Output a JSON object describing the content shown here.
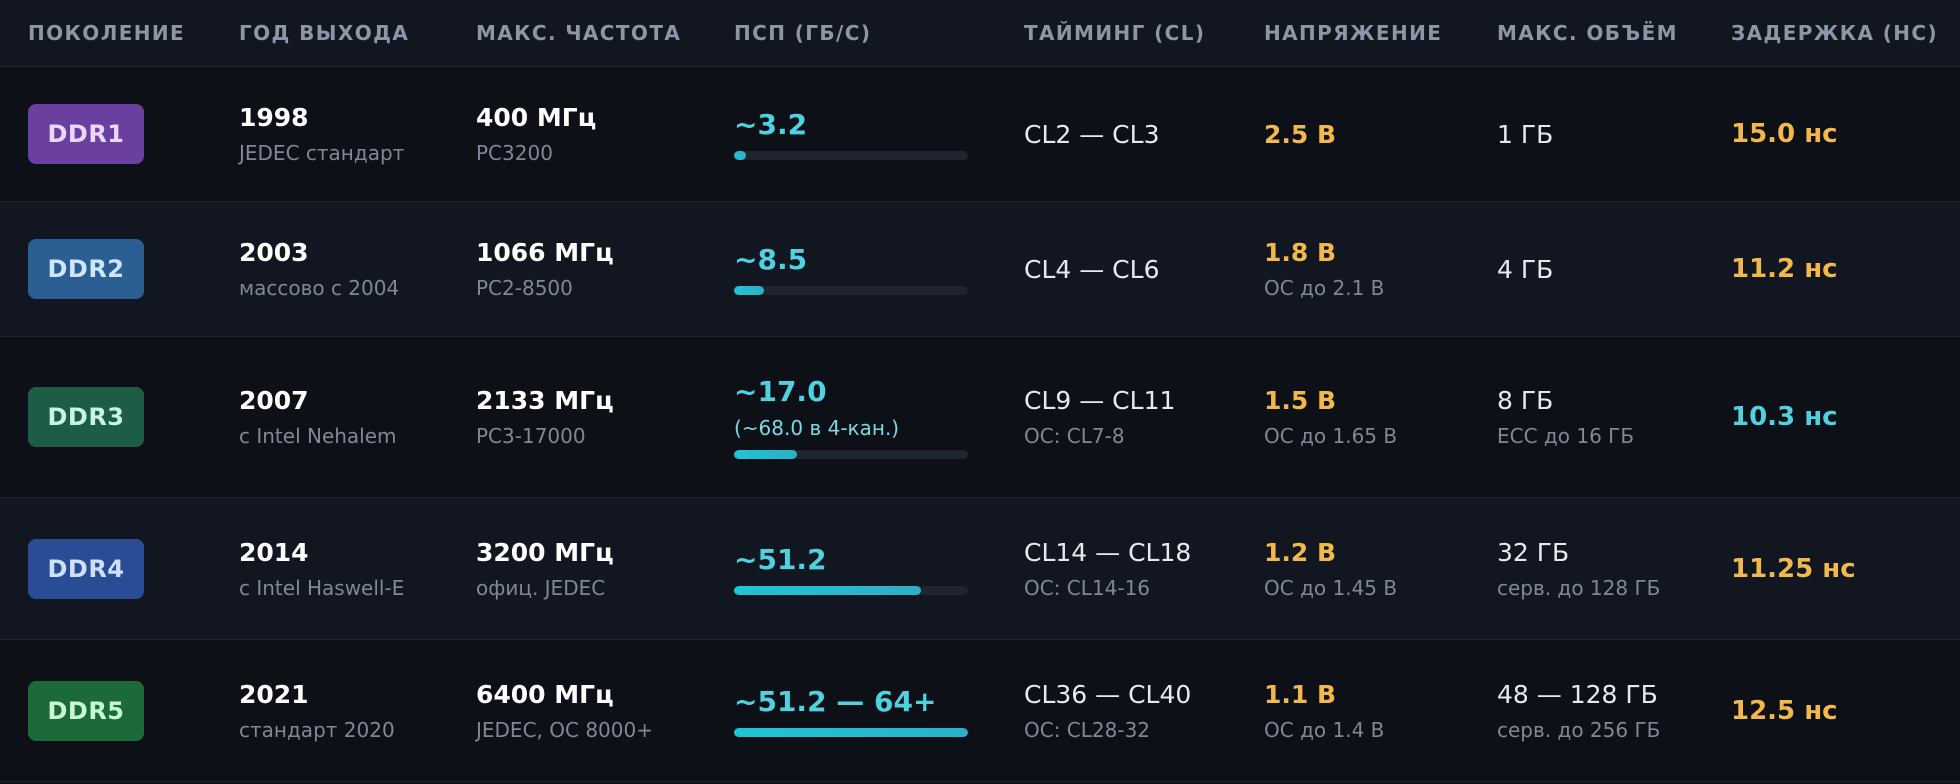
{
  "headers": {
    "generation": "ПОКОЛЕНИЕ",
    "year": "ГОД ВЫХОДА",
    "freq": "МАКС. ЧАСТОТА",
    "bandwidth": "ПСП (ГБ/С)",
    "timing": "ТАЙМИНГ (CL)",
    "voltage": "НАПРЯЖЕНИЕ",
    "capacity": "МАКС. ОБЪЁМ",
    "latency": "ЗАДЕРЖКА (НС)"
  },
  "rows": [
    {
      "gen": "DDR1",
      "badge_bg": "#6b3fa0",
      "badge_fg": "#e9d8ff",
      "year": "1998",
      "year_note": "JEDEC стандарт",
      "freq": "400 МГц",
      "freq_note": "PC3200",
      "bw": "~3.2",
      "bw_note": "",
      "bw_fill": 0.05,
      "timing": "CL2 — CL3",
      "timing_note": "",
      "voltage": "2.5 В",
      "voltage_note": "",
      "capacity": "1 ГБ",
      "capacity_note": "",
      "latency": "15.0 нс",
      "latency_tone": "warm"
    },
    {
      "gen": "DDR2",
      "badge_bg": "#2b5f93",
      "badge_fg": "#cfe6ff",
      "year": "2003",
      "year_note": "массово с 2004",
      "freq": "1066 МГц",
      "freq_note": "PC2-8500",
      "bw": "~8.5",
      "bw_note": "",
      "bw_fill": 0.13,
      "timing": "CL4 — CL6",
      "timing_note": "",
      "voltage": "1.8 В",
      "voltage_note": "OC до 2.1 В",
      "capacity": "4 ГБ",
      "capacity_note": "",
      "latency": "11.2 нс",
      "latency_tone": "warm"
    },
    {
      "gen": "DDR3",
      "badge_bg": "#1d5c47",
      "badge_fg": "#c7f5df",
      "year": "2007",
      "year_note": "с Intel Nehalem",
      "freq": "2133 МГц",
      "freq_note": "PC3-17000",
      "bw": "~17.0",
      "bw_note": "(~68.0 в 4-кан.)",
      "bw_fill": 0.27,
      "timing": "CL9 — CL11",
      "timing_note": "OC: CL7-8",
      "voltage": "1.5 В",
      "voltage_note": "OC до 1.65 В",
      "capacity": "8 ГБ",
      "capacity_note": "ECC до 16 ГБ",
      "latency": "10.3 нс",
      "latency_tone": "cool"
    },
    {
      "gen": "DDR4",
      "badge_bg": "#2a4c94",
      "badge_fg": "#cfe0ff",
      "year": "2014",
      "year_note": "с Intel Haswell-E",
      "freq": "3200 МГц",
      "freq_note": "офиц. JEDEC",
      "bw": "~51.2",
      "bw_note": "",
      "bw_fill": 0.8,
      "timing": "CL14 — CL18",
      "timing_note": "OC: CL14-16",
      "voltage": "1.2 В",
      "voltage_note": "OC до 1.45 В",
      "capacity": "32 ГБ",
      "capacity_note": "серв. до 128 ГБ",
      "latency": "11.25 нс",
      "latency_tone": "warm"
    },
    {
      "gen": "DDR5",
      "badge_bg": "#1c6a3a",
      "badge_fg": "#c8f7d2",
      "year": "2021",
      "year_note": "стандарт 2020",
      "freq": "6400 МГц",
      "freq_note": "JEDEC, OC 8000+",
      "bw": "~51.2 — 64+",
      "bw_note": "",
      "bw_fill": 1.0,
      "timing": "CL36 — CL40",
      "timing_note": "OC: CL28-32",
      "voltage": "1.1 В",
      "voltage_note": "OC до 1.4 В",
      "capacity": "48 — 128 ГБ",
      "capacity_note": "серв. до 256 ГБ",
      "latency": "12.5 нс",
      "latency_tone": "warm"
    }
  ]
}
